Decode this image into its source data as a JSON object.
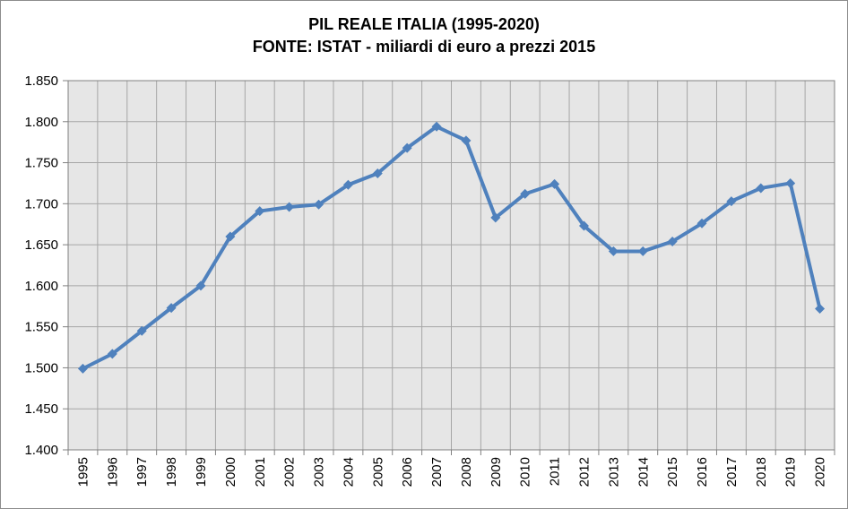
{
  "chart_data": {
    "type": "line",
    "title_line1": "PIL REALE ITALIA (1995-2020)",
    "title_line2": "FONTE: ISTAT - miliardi di euro a prezzi 2015",
    "xlabel": "",
    "ylabel": "",
    "ylim": [
      1400,
      1850
    ],
    "ytick_step": 50,
    "yticks": [
      "1.400",
      "1.450",
      "1.500",
      "1.550",
      "1.600",
      "1.650",
      "1.700",
      "1.750",
      "1.800",
      "1.850"
    ],
    "categories": [
      "1995",
      "1996",
      "1997",
      "1998",
      "1999",
      "2000",
      "2001",
      "2002",
      "2003",
      "2004",
      "2005",
      "2006",
      "2007",
      "2008",
      "2009",
      "2010",
      "2011",
      "2012",
      "2013",
      "2014",
      "2015",
      "2016",
      "2017",
      "2018",
      "2019",
      "2020"
    ],
    "series": [
      {
        "values": [
          1499,
          1517,
          1545,
          1573,
          1600,
          1660,
          1691,
          1696,
          1699,
          1723,
          1737,
          1768,
          1794,
          1777,
          1683,
          1712,
          1724,
          1673,
          1642,
          1642,
          1654,
          1676,
          1703,
          1719,
          1725,
          1572
        ]
      }
    ],
    "grid": true,
    "colors": {
      "line": "#4f81bd",
      "plot_background": "#e6e6e6",
      "gridline": "#a6a6a6"
    }
  }
}
